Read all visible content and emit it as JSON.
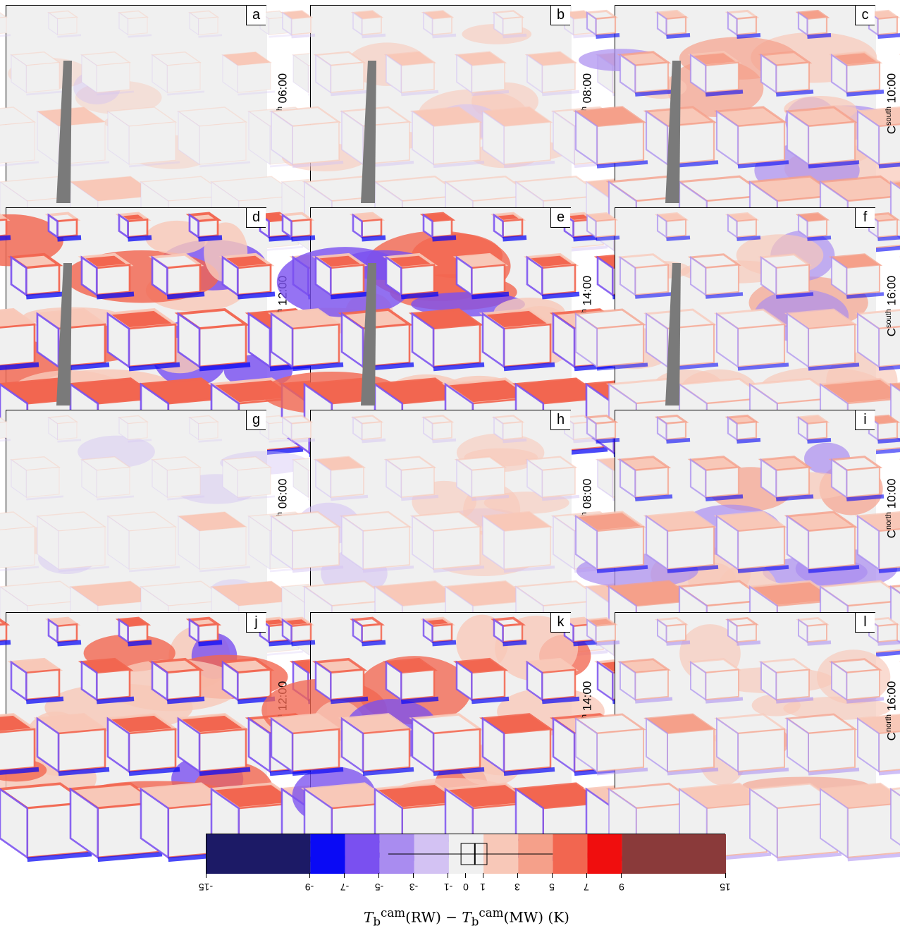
{
  "colors": {
    "background": "#f0f0f0",
    "frame": "#000000",
    "tower": "#7a7a7a",
    "bins": [
      "#1c1a66",
      "#0a0af5",
      "#7a50f0",
      "#a98cf0",
      "#d3c2f3",
      "#f0f0f0",
      "#f8c8b8",
      "#f5a08a",
      "#f26650",
      "#f00e0e",
      "#8a3a3a"
    ]
  },
  "panels": [
    {
      "letter": "a",
      "camera": "C",
      "sup": "south",
      "time": "06:00",
      "pattern": {
        "tower": true,
        "strength": 0.15,
        "warm_bias": 0.6
      }
    },
    {
      "letter": "b",
      "camera": "C",
      "sup": "south",
      "time": "08:00",
      "pattern": {
        "tower": true,
        "strength": 0.45,
        "warm_bias": 0.7
      }
    },
    {
      "letter": "c",
      "camera": "C",
      "sup": "south",
      "time": "10:00",
      "pattern": {
        "tower": true,
        "strength": 0.7,
        "warm_bias": 0.75
      }
    },
    {
      "letter": "d",
      "camera": "C",
      "sup": "south",
      "time": "12:00",
      "pattern": {
        "tower": true,
        "strength": 0.95,
        "warm_bias": 0.7
      }
    },
    {
      "letter": "e",
      "camera": "C",
      "sup": "south",
      "time": "14:00",
      "pattern": {
        "tower": true,
        "strength": 0.9,
        "warm_bias": 0.7
      }
    },
    {
      "letter": "f",
      "camera": "C",
      "sup": "south",
      "time": "16:00",
      "pattern": {
        "tower": true,
        "strength": 0.65,
        "warm_bias": 0.8
      }
    },
    {
      "letter": "g",
      "camera": "C",
      "sup": "north",
      "time": "06:00",
      "pattern": {
        "tower": false,
        "strength": 0.15,
        "warm_bias": 0.45
      }
    },
    {
      "letter": "h",
      "camera": "C",
      "sup": "north",
      "time": "08:00",
      "pattern": {
        "tower": false,
        "strength": 0.45,
        "warm_bias": 0.6
      }
    },
    {
      "letter": "i",
      "camera": "C",
      "sup": "north",
      "time": "10:00",
      "pattern": {
        "tower": false,
        "strength": 0.7,
        "warm_bias": 0.55
      }
    },
    {
      "letter": "j",
      "camera": "C",
      "sup": "north",
      "time": "12:00",
      "pattern": {
        "tower": false,
        "strength": 0.9,
        "warm_bias": 0.75
      }
    },
    {
      "letter": "k",
      "camera": "C",
      "sup": "north",
      "time": "14:00",
      "pattern": {
        "tower": false,
        "strength": 0.85,
        "warm_bias": 0.85
      }
    },
    {
      "letter": "l",
      "camera": "C",
      "sup": "north",
      "time": "16:00",
      "pattern": {
        "tower": false,
        "strength": 0.6,
        "warm_bias": 0.85
      }
    }
  ],
  "legend": {
    "breaks": [
      -15,
      -9,
      -7,
      -5,
      -3,
      -1,
      0,
      1,
      3,
      5,
      7,
      9,
      15
    ],
    "tick_labels": [
      "-15",
      "-9",
      "-7",
      "-5",
      "-3",
      "-1",
      "0",
      "1",
      "3",
      "5",
      "7",
      "9",
      "15"
    ],
    "bins": [
      [
        -15,
        -9
      ],
      [
        -9,
        -7
      ],
      [
        -7,
        -5
      ],
      [
        -5,
        -3
      ],
      [
        -3,
        -1
      ],
      [
        -1,
        1
      ],
      [
        1,
        3
      ],
      [
        3,
        5
      ],
      [
        5,
        7
      ],
      [
        7,
        9
      ],
      [
        9,
        15
      ]
    ],
    "boxplot": {
      "whisker_low": -4.5,
      "q1": -0.3,
      "median": 0.5,
      "q3": 1.2,
      "whisker_high": 5.0
    },
    "axis_label": "T_b^cam(RW) − T_b^cam(MW) (K)",
    "axis_label_parts": {
      "sym1": "T",
      "sub1": "b",
      "sup1": "cam",
      "arg1": "(RW)",
      "minus": " − ",
      "sym2": "T",
      "sub2": "b",
      "sup2": "cam",
      "arg2": "(MW) (K)"
    }
  }
}
